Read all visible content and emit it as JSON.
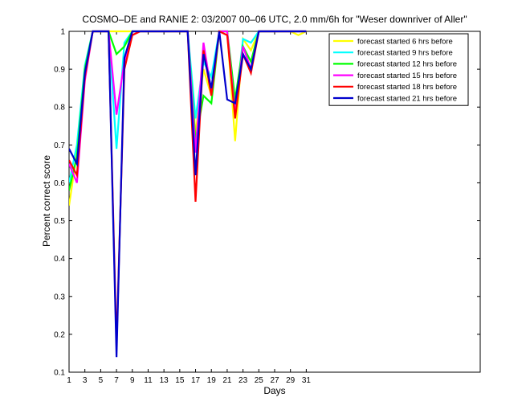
{
  "chart_data": {
    "type": "line",
    "title": "COSMO–DE and RANIE 2: 03/2007 00–06 UTC, 2.0 mm/6h for \"Weser downriver of Aller\"",
    "xlabel": "Days",
    "ylabel": "Percent correct score",
    "xlim": [
      1,
      53
    ],
    "ylim": [
      0.1,
      1.0
    ],
    "x_ticks": [
      1,
      3,
      5,
      7,
      9,
      11,
      13,
      15,
      17,
      19,
      21,
      23,
      25,
      27,
      29,
      31
    ],
    "y_ticks": [
      0.1,
      0.2,
      0.3,
      0.4,
      0.5,
      0.6,
      0.7,
      0.8,
      0.9,
      1
    ],
    "y_tick_labels": [
      "0.1",
      "0.2",
      "0.3",
      "0.4",
      "0.5",
      "0.6",
      "0.7",
      "0.8",
      "0.9",
      "1"
    ],
    "grid": false,
    "legend_position": "top-right",
    "x": [
      1,
      2,
      3,
      4,
      5,
      6,
      7,
      8,
      9,
      10,
      11,
      12,
      13,
      14,
      15,
      16,
      17,
      18,
      19,
      20,
      21,
      22,
      23,
      24,
      25,
      26,
      27,
      28,
      29,
      30,
      31
    ],
    "series": [
      {
        "name": "forecast started 6 hrs before",
        "color": "#ffff00",
        "values": [
          0.54,
          0.68,
          0.9,
          1.0,
          1.0,
          1.0,
          1.0,
          1.0,
          1.0,
          1.0,
          1.0,
          1.0,
          1.0,
          1.0,
          1.0,
          1.0,
          0.73,
          0.9,
          0.83,
          1.0,
          1.0,
          0.71,
          0.98,
          0.95,
          1.0,
          1.0,
          1.0,
          1.0,
          1.0,
          0.99,
          1.0
        ]
      },
      {
        "name": "forecast started 9 hrs before",
        "color": "#00ffff",
        "values": [
          0.6,
          0.7,
          0.91,
          1.0,
          1.0,
          1.0,
          0.69,
          0.97,
          1.0,
          1.0,
          1.0,
          1.0,
          1.0,
          1.0,
          1.0,
          1.0,
          0.77,
          0.92,
          0.88,
          1.0,
          1.0,
          0.79,
          0.98,
          0.97,
          1.0,
          1.0,
          1.0,
          1.0,
          1.0,
          1.0,
          1.0
        ]
      },
      {
        "name": "forecast started 12 hrs before",
        "color": "#00ff00",
        "values": [
          0.58,
          0.67,
          0.9,
          1.0,
          1.0,
          1.0,
          0.94,
          0.96,
          1.0,
          1.0,
          1.0,
          1.0,
          1.0,
          1.0,
          1.0,
          1.0,
          0.71,
          0.83,
          0.81,
          1.0,
          1.0,
          0.82,
          0.96,
          0.92,
          1.0,
          1.0,
          1.0,
          1.0,
          1.0,
          1.0,
          1.0
        ]
      },
      {
        "name": "forecast started 15 hrs before",
        "color": "#ff00ff",
        "values": [
          0.65,
          0.6,
          0.87,
          1.0,
          1.0,
          1.0,
          0.78,
          0.92,
          1.0,
          1.0,
          1.0,
          1.0,
          1.0,
          1.0,
          1.0,
          1.0,
          0.68,
          0.97,
          0.84,
          1.0,
          1.0,
          0.78,
          0.96,
          0.9,
          1.0,
          1.0,
          1.0,
          1.0,
          1.0,
          1.0,
          1.0
        ]
      },
      {
        "name": "forecast started 18 hrs before",
        "color": "#ff0000",
        "values": [
          0.66,
          0.62,
          0.88,
          1.0,
          1.0,
          1.0,
          0.17,
          0.9,
          0.99,
          1.0,
          1.0,
          1.0,
          1.0,
          1.0,
          1.0,
          1.0,
          0.55,
          0.95,
          0.83,
          1.0,
          0.99,
          0.77,
          0.94,
          0.89,
          1.0,
          1.0,
          1.0,
          1.0,
          1.0,
          1.0,
          1.0
        ]
      },
      {
        "name": "forecast started 21 hrs before",
        "color": "#0000cc",
        "values": [
          0.69,
          0.65,
          0.89,
          1.0,
          1.0,
          1.0,
          0.14,
          0.93,
          1.0,
          1.0,
          1.0,
          1.0,
          1.0,
          1.0,
          1.0,
          1.0,
          0.62,
          0.94,
          0.85,
          1.0,
          0.82,
          0.81,
          0.94,
          0.9,
          1.0,
          1.0,
          1.0,
          1.0,
          1.0,
          1.0,
          1.0
        ]
      }
    ]
  }
}
